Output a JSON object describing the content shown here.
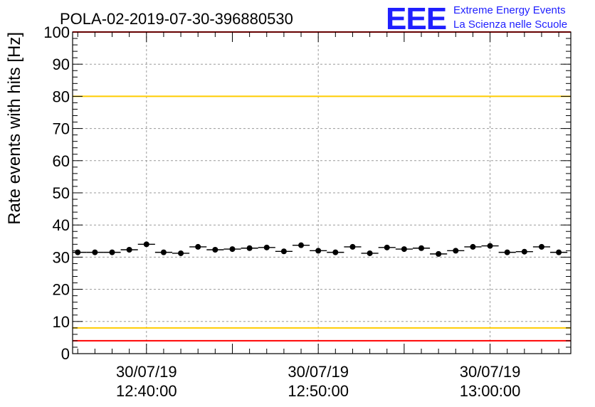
{
  "header": {
    "title": "POLA-02-2019-07-30-396880530",
    "logo_text": "EEE",
    "logo_line1": "Extreme Energy Events",
    "logo_line2": "La Scienza nelle Scuole"
  },
  "chart_data": {
    "type": "scatter",
    "ylabel": "Rate events with hits [Hz]",
    "ylim": [
      0,
      100
    ],
    "yticks": [
      0,
      10,
      20,
      30,
      40,
      50,
      60,
      70,
      80,
      90,
      100
    ],
    "xlim_minutes": [
      -4.3,
      24.7
    ],
    "xticks": [
      {
        "minutes": 0,
        "date": "30/07/19",
        "time": "12:40:00"
      },
      {
        "minutes": 10,
        "date": "30/07/19",
        "time": "12:50:00"
      },
      {
        "minutes": 20,
        "date": "30/07/19",
        "time": "13:00:00"
      }
    ],
    "grid": true,
    "reference_lines": [
      {
        "y": 100,
        "color": "#ff0000"
      },
      {
        "y": 80,
        "color": "#ffcc00"
      },
      {
        "y": 8,
        "color": "#ffcc00"
      },
      {
        "y": 4,
        "color": "#ff0000"
      }
    ],
    "series": [
      {
        "marker_color": "#000000",
        "bin_width_minutes": 1,
        "x_minutes": [
          -4,
          -3,
          -2,
          -1,
          0,
          1,
          2,
          3,
          4,
          5,
          6,
          7,
          8,
          9,
          10,
          11,
          12,
          13,
          14,
          15,
          16,
          17,
          18,
          19,
          20,
          21,
          22,
          23,
          24
        ],
        "values": [
          31.5,
          31.5,
          31.5,
          32.3,
          34.0,
          31.5,
          31.2,
          33.2,
          32.3,
          32.5,
          32.8,
          33.0,
          31.8,
          33.7,
          32.0,
          31.5,
          33.2,
          31.2,
          33.0,
          32.5,
          32.8,
          31.0,
          32.0,
          33.2,
          33.5,
          31.5,
          31.7,
          33.2,
          31.5
        ]
      }
    ]
  }
}
